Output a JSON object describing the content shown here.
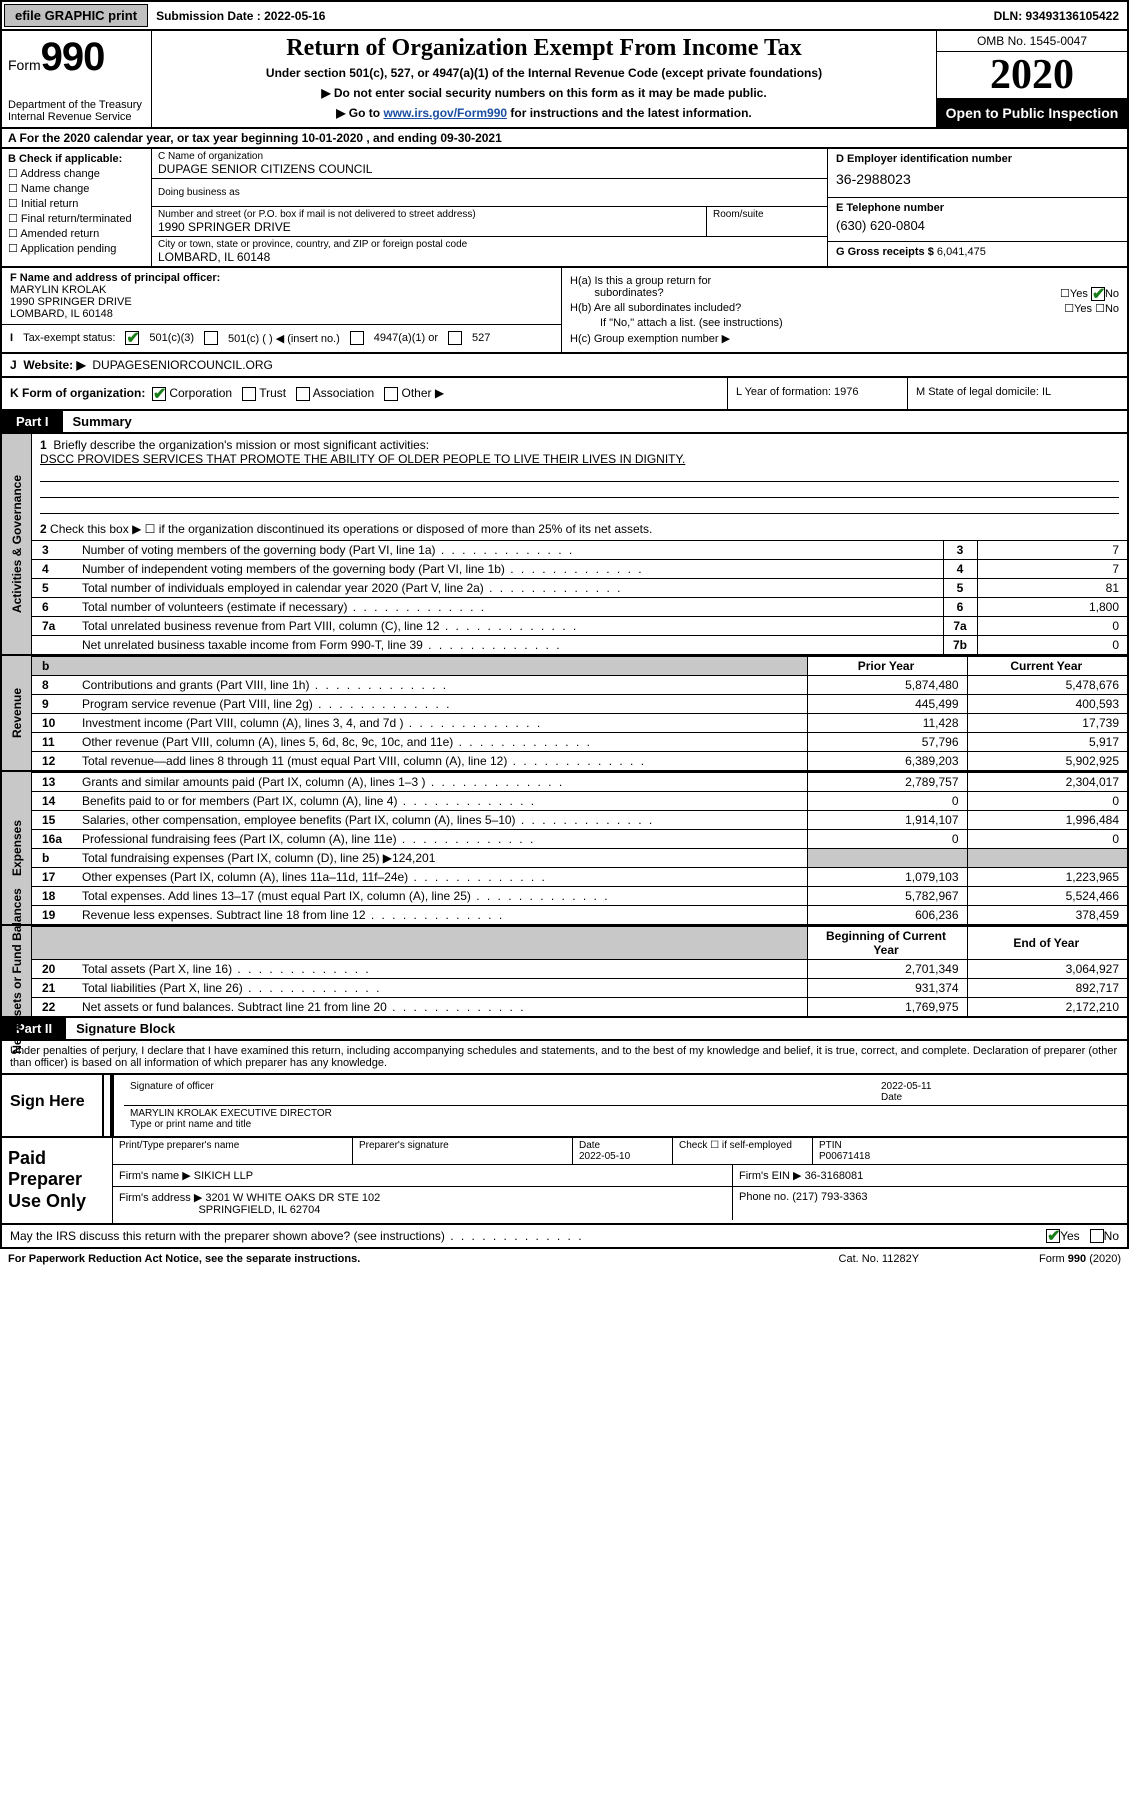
{
  "topbar": {
    "efile": "efile GRAPHIC print",
    "subm_label": "Submission Date : 2022-05-16",
    "dln": "DLN: 93493136105422"
  },
  "header": {
    "form_word": "Form",
    "form_num": "990",
    "dept": "Department of the Treasury\nInternal Revenue Service",
    "title": "Return of Organization Exempt From Income Tax",
    "sub": "Under section 501(c), 527, or 4947(a)(1) of the Internal Revenue Code (except private foundations)",
    "note1": "▶ Do not enter social security numbers on this form as it may be made public.",
    "note2_pre": "▶ Go to ",
    "note2_link": "www.irs.gov/Form990",
    "note2_post": " for instructions and the latest information.",
    "omb": "OMB No. 1545-0047",
    "year": "2020",
    "open": "Open to Public Inspection"
  },
  "rowA": "A   For the 2020 calendar year, or tax year beginning 10-01-2020     , and ending 09-30-2021",
  "B": {
    "lead": "B Check if applicable:",
    "opts": [
      "Address change",
      "Name change",
      "Initial return",
      "Final return/terminated",
      "Amended return",
      "Application pending"
    ]
  },
  "C": {
    "name_lbl": "C Name of organization",
    "name": "DUPAGE SENIOR CITIZENS COUNCIL",
    "dba_lbl": "Doing business as",
    "street_lbl": "Number and street (or P.O. box if mail is not delivered to street address)",
    "street": "1990 SPRINGER DRIVE",
    "room_lbl": "Room/suite",
    "city_lbl": "City or town, state or province, country, and ZIP or foreign postal code",
    "city": "LOMBARD, IL  60148"
  },
  "D": {
    "lbl": "D Employer identification number",
    "val": "36-2988023"
  },
  "E": {
    "lbl": "E Telephone number",
    "val": "(630) 620-0804"
  },
  "G": {
    "lbl": "G Gross receipts $",
    "val": "6,041,475"
  },
  "F": {
    "lbl": "F  Name and address of principal officer:",
    "name": "MARYLIN KROLAK",
    "addr1": "1990 SPRINGER DRIVE",
    "addr2": "LOMBARD, IL  60148"
  },
  "I": {
    "lbl": "Tax-exempt status:",
    "c1": "501(c)(3)",
    "c2": "501(c) (   ) ◀ (insert no.)",
    "c3": "4947(a)(1) or",
    "c4": "527"
  },
  "H": {
    "a_lbl": "H(a)  Is this a group return for",
    "a_sub": "subordinates?",
    "b_lbl": "H(b)  Are all subordinates included?",
    "b_note": "If \"No,\" attach a list. (see instructions)",
    "c_lbl": "H(c)  Group exemption number ▶",
    "yes": "Yes",
    "no": "No"
  },
  "J": {
    "lbl": "J",
    "text": "Website: ▶",
    "val": "DUPAGESENIORCOUNCIL.ORG"
  },
  "K": {
    "lbl": "K Form of organization:",
    "opts": [
      "Corporation",
      "Trust",
      "Association",
      "Other ▶"
    ],
    "L": "L Year of formation: 1976",
    "M": "M State of legal domicile: IL"
  },
  "partI": {
    "tab": "Part I",
    "title": "Summary"
  },
  "gov": {
    "q1_lbl": "1",
    "q1": "Briefly describe the organization's mission or most significant activities:",
    "mission": "DSCC PROVIDES SERVICES THAT PROMOTE THE ABILITY OF OLDER PEOPLE TO LIVE THEIR LIVES IN DIGNITY.",
    "q2_lbl": "2",
    "q2": "Check this box ▶ ☐  if the organization discontinued its operations or disposed of more than 25% of its net assets.",
    "rows": [
      {
        "n": "3",
        "t": "Number of voting members of the governing body (Part VI, line 1a)",
        "k": "3",
        "v": "7"
      },
      {
        "n": "4",
        "t": "Number of independent voting members of the governing body (Part VI, line 1b)",
        "k": "4",
        "v": "7"
      },
      {
        "n": "5",
        "t": "Total number of individuals employed in calendar year 2020 (Part V, line 2a)",
        "k": "5",
        "v": "81"
      },
      {
        "n": "6",
        "t": "Total number of volunteers (estimate if necessary)",
        "k": "6",
        "v": "1,800"
      },
      {
        "n": "7a",
        "t": "Total unrelated business revenue from Part VIII, column (C), line 12",
        "k": "7a",
        "v": "0"
      },
      {
        "n": "",
        "t": "Net unrelated business taxable income from Form 990-T, line 39",
        "k": "7b",
        "v": "0"
      }
    ],
    "b_lbl": "b"
  },
  "rev": {
    "hdr_prior": "Prior Year",
    "hdr_curr": "Current Year",
    "rows": [
      {
        "n": "8",
        "t": "Contributions and grants (Part VIII, line 1h)",
        "p": "5,874,480",
        "c": "5,478,676"
      },
      {
        "n": "9",
        "t": "Program service revenue (Part VIII, line 2g)",
        "p": "445,499",
        "c": "400,593"
      },
      {
        "n": "10",
        "t": "Investment income (Part VIII, column (A), lines 3, 4, and 7d )",
        "p": "11,428",
        "c": "17,739"
      },
      {
        "n": "11",
        "t": "Other revenue (Part VIII, column (A), lines 5, 6d, 8c, 9c, 10c, and 11e)",
        "p": "57,796",
        "c": "5,917"
      },
      {
        "n": "12",
        "t": "Total revenue—add lines 8 through 11 (must equal Part VIII, column (A), line 12)",
        "p": "6,389,203",
        "c": "5,902,925"
      }
    ]
  },
  "exp": {
    "rows": [
      {
        "n": "13",
        "t": "Grants and similar amounts paid (Part IX, column (A), lines 1–3 )",
        "p": "2,789,757",
        "c": "2,304,017"
      },
      {
        "n": "14",
        "t": "Benefits paid to or for members (Part IX, column (A), line 4)",
        "p": "0",
        "c": "0"
      },
      {
        "n": "15",
        "t": "Salaries, other compensation, employee benefits (Part IX, column (A), lines 5–10)",
        "p": "1,914,107",
        "c": "1,996,484"
      },
      {
        "n": "16a",
        "t": "Professional fundraising fees (Part IX, column (A), line 11e)",
        "p": "0",
        "c": "0"
      },
      {
        "n": "b",
        "t": "Total fundraising expenses (Part IX, column (D), line 25) ▶124,201",
        "p": "",
        "c": "",
        "shade": true
      },
      {
        "n": "17",
        "t": "Other expenses (Part IX, column (A), lines 11a–11d, 11f–24e)",
        "p": "1,079,103",
        "c": "1,223,965"
      },
      {
        "n": "18",
        "t": "Total expenses. Add lines 13–17 (must equal Part IX, column (A), line 25)",
        "p": "5,782,967",
        "c": "5,524,466"
      },
      {
        "n": "19",
        "t": "Revenue less expenses. Subtract line 18 from line 12",
        "p": "606,236",
        "c": "378,459"
      }
    ]
  },
  "net": {
    "hdr_beg": "Beginning of Current Year",
    "hdr_end": "End of Year",
    "rows": [
      {
        "n": "20",
        "t": "Total assets (Part X, line 16)",
        "p": "2,701,349",
        "c": "3,064,927"
      },
      {
        "n": "21",
        "t": "Total liabilities (Part X, line 26)",
        "p": "931,374",
        "c": "892,717"
      },
      {
        "n": "22",
        "t": "Net assets or fund balances. Subtract line 21 from line 20",
        "p": "1,769,975",
        "c": "2,172,210"
      }
    ]
  },
  "partII": {
    "tab": "Part II",
    "title": "Signature Block"
  },
  "perjury": "Under penalties of perjury, I declare that I have examined this return, including accompanying schedules and statements, and to the best of my knowledge and belief, it is true, correct, and complete. Declaration of preparer (other than officer) is based on all information of which preparer has any knowledge.",
  "sign": {
    "left": "Sign Here",
    "sig_of_officer": "Signature of officer",
    "date_lbl": "Date",
    "date": "2022-05-11",
    "name": "MARYLIN KROLAK  EXECUTIVE DIRECTOR",
    "type_lbl": "Type or print name and title"
  },
  "paid": {
    "left": "Paid Preparer Use Only",
    "h": [
      "Print/Type preparer's name",
      "Preparer's signature",
      "Date",
      "Check ☐ if self-employed",
      "PTIN"
    ],
    "date": "2022-05-10",
    "ptin": "P00671418",
    "firm_lbl": "Firm's name   ▶",
    "firm": "SIKICH LLP",
    "ein_lbl": "Firm's EIN ▶",
    "ein": "36-3168081",
    "addr_lbl": "Firm's address ▶",
    "addr1": "3201 W WHITE OAKS DR STE 102",
    "addr2": "SPRINGFIELD, IL  62704",
    "phone_lbl": "Phone no.",
    "phone": "(217) 793-3363"
  },
  "discuss": {
    "q": "May the IRS discuss this return with the preparer shown above? (see instructions)",
    "yes": "Yes",
    "no": "No"
  },
  "footer": {
    "l": "For Paperwork Reduction Act Notice, see the separate instructions.",
    "m": "Cat. No. 11282Y",
    "r": "Form 990 (2020)"
  }
}
